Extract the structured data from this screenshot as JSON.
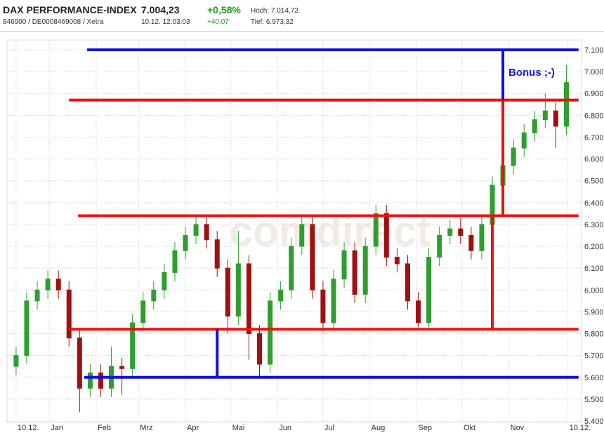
{
  "header": {
    "name": "DAX PERFORMANCE-INDEX",
    "ids": "846900 / DE0008469008 / Xetra",
    "price": "7.004,23",
    "time": "10.12. 12:03:03",
    "change_pct": "+0,58%",
    "change_abs": "+40,07",
    "high": "Hoch: 7.014,72",
    "low": "Tief: 6.973,32"
  },
  "chart_data": {
    "type": "candlestick",
    "watermark": "comdirect",
    "annotation": "Bonus ;-)",
    "up_color": "#2e9e2e",
    "down_color": "#a01010",
    "grid": true,
    "xlim": [
      -6,
      374
    ],
    "ylim": [
      5400,
      7100
    ],
    "xticks": [
      {
        "value": 0,
        "label": "10.12."
      },
      {
        "value": 22,
        "label": "Jan"
      },
      {
        "value": 53,
        "label": "Feb"
      },
      {
        "value": 81,
        "label": "Mrz"
      },
      {
        "value": 112,
        "label": "Apr"
      },
      {
        "value": 142,
        "label": "Mai"
      },
      {
        "value": 173,
        "label": "Jun"
      },
      {
        "value": 203,
        "label": "Jul"
      },
      {
        "value": 234,
        "label": "Aug"
      },
      {
        "value": 265,
        "label": "Sep"
      },
      {
        "value": 295,
        "label": "Okt"
      },
      {
        "value": 326,
        "label": "Nov"
      },
      {
        "value": 365,
        "label": "10.12."
      }
    ],
    "yticks": [
      {
        "value": 5400,
        "label": "5.400"
      },
      {
        "value": 5500,
        "label": "5.500"
      },
      {
        "value": 5600,
        "label": "5.600"
      },
      {
        "value": 5700,
        "label": "5.700"
      },
      {
        "value": 5800,
        "label": "5.800"
      },
      {
        "value": 5900,
        "label": "5.900"
      },
      {
        "value": 6000,
        "label": "6.000"
      },
      {
        "value": 6100,
        "label": "6.100"
      },
      {
        "value": 6200,
        "label": "6.200"
      },
      {
        "value": 6300,
        "label": "6.300"
      },
      {
        "value": 6400,
        "label": "6.400"
      },
      {
        "value": 6500,
        "label": "6.500"
      },
      {
        "value": 6600,
        "label": "6.600"
      },
      {
        "value": 6700,
        "label": "6.700"
      },
      {
        "value": 6800,
        "label": "6.800"
      },
      {
        "value": 6900,
        "label": "6.900"
      },
      {
        "value": 7000,
        "label": "7.000"
      },
      {
        "value": 7100,
        "label": "7.100"
      }
    ],
    "x": [
      0,
      7,
      14,
      21,
      28,
      35,
      42,
      49,
      56,
      63,
      70,
      77,
      84,
      91,
      98,
      105,
      112,
      119,
      126,
      133,
      140,
      147,
      154,
      161,
      168,
      175,
      182,
      189,
      196,
      203,
      210,
      217,
      224,
      231,
      238,
      245,
      252,
      259,
      266,
      273,
      280,
      287,
      294,
      301,
      308,
      315,
      322,
      329,
      336,
      343,
      350,
      357,
      364
    ],
    "open": [
      5650,
      5700,
      5950,
      6000,
      6050,
      6000,
      5780,
      5550,
      5620,
      5550,
      5650,
      5640,
      5850,
      5950,
      6000,
      6080,
      6180,
      6250,
      6300,
      6230,
      6100,
      5880,
      6120,
      5800,
      5660,
      5950,
      6000,
      6200,
      6300,
      6000,
      5850,
      6050,
      6180,
      5980,
      6200,
      6350,
      6150,
      6120,
      5950,
      5850,
      6150,
      6250,
      6280,
      6250,
      6180,
      6300,
      6480,
      6570,
      6650,
      6720,
      6780,
      6820,
      6750
    ],
    "high": [
      5740,
      5990,
      6040,
      6090,
      6090,
      6040,
      5820,
      5660,
      5660,
      5740,
      5690,
      5890,
      5990,
      6040,
      6120,
      6220,
      6290,
      6340,
      6340,
      6270,
      6140,
      6270,
      6160,
      5840,
      5990,
      6040,
      6240,
      6340,
      6340,
      6040,
      6090,
      6220,
      6220,
      6240,
      6390,
      6390,
      6190,
      6160,
      5990,
      6190,
      6290,
      6320,
      6330,
      6290,
      6340,
      6520,
      6610,
      6690,
      6760,
      6820,
      6900,
      6860,
      7030
    ],
    "low": [
      5610,
      5660,
      5910,
      5960,
      5960,
      5740,
      5440,
      5510,
      5510,
      5510,
      5520,
      5600,
      5810,
      5910,
      5960,
      6040,
      6140,
      6210,
      6190,
      6060,
      5800,
      5840,
      5680,
      5600,
      5620,
      5910,
      5960,
      6160,
      5960,
      5810,
      5810,
      6010,
      5940,
      5940,
      6160,
      6110,
      6080,
      5910,
      5830,
      5830,
      6110,
      6210,
      6210,
      6140,
      6140,
      6260,
      6440,
      6530,
      6610,
      6680,
      6740,
      6650,
      6710
    ],
    "close": [
      5700,
      5950,
      6000,
      6050,
      6000,
      5780,
      5550,
      5620,
      5550,
      5650,
      5640,
      5850,
      5950,
      6000,
      6080,
      6180,
      6250,
      6300,
      6230,
      6100,
      5880,
      6120,
      5800,
      5660,
      5950,
      6000,
      6200,
      6300,
      6000,
      5850,
      6050,
      6180,
      5980,
      6200,
      6350,
      6150,
      6120,
      5950,
      5850,
      6150,
      6250,
      6280,
      6250,
      6180,
      6300,
      6480,
      6570,
      6650,
      6720,
      6780,
      6820,
      6750,
      6950
    ],
    "hlines": [
      {
        "value": 7100,
        "x0": 47,
        "x1": 372,
        "color": "#1010e0"
      },
      {
        "value": 6870,
        "x0": 35,
        "x1": 372,
        "color": "#f01010"
      },
      {
        "value": 6340,
        "x0": 41,
        "x1": 372,
        "color": "#f01010"
      },
      {
        "value": 5820,
        "x0": 35,
        "x1": 372,
        "color": "#f01010"
      },
      {
        "value": 5600,
        "x0": 45,
        "x1": 372,
        "color": "#1010e0"
      }
    ],
    "vlines": [
      {
        "x": 322,
        "y0": 6870,
        "y1": 7100,
        "color": "#1010e0"
      },
      {
        "x": 322,
        "y0": 6340,
        "y1": 6870,
        "color": "#f01010"
      },
      {
        "x": 315,
        "y0": 5820,
        "y1": 6340,
        "color": "#f01010"
      },
      {
        "x": 133,
        "y0": 5600,
        "y1": 5820,
        "color": "#1010e0"
      }
    ]
  }
}
